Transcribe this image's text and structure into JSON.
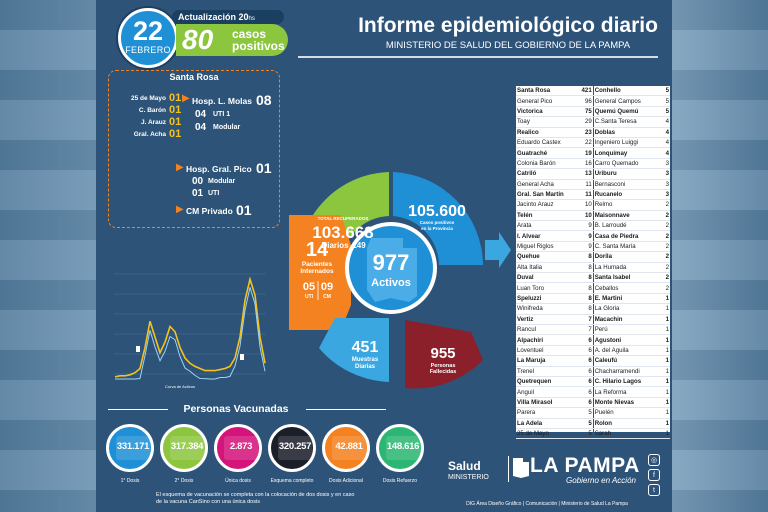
{
  "header": {
    "day": "22",
    "month": "FEBRERO",
    "update_label": "Actualización 20",
    "update_suffix": "hs",
    "new_cases": "80",
    "new_cases_label_line1": "casos",
    "new_cases_label_line2": "positivos",
    "title": "Informe epidemiológico diario",
    "subtitle": "MINISTERIO DE SALUD DEL GOBIERNO DE LA PAMPA"
  },
  "santa_rosa": {
    "title": "Santa Rosa",
    "municipalities": [
      {
        "name": "25 de Mayo",
        "value": "01"
      },
      {
        "name": "C. Barón",
        "value": "01"
      },
      {
        "name": "J. Arauz",
        "value": "01"
      },
      {
        "name": "Gral. Acha",
        "value": "01"
      }
    ],
    "molas": {
      "label": "Hosp. L. Molas",
      "value": "08",
      "uti_value": "04",
      "uti_label": "UTI 1",
      "modular_value": "04",
      "modular_label": "Modular"
    },
    "pico": {
      "label": "Hosp. Gral. Pico",
      "value": "01",
      "modular_value": "00",
      "modular_label": "Modular",
      "uti_value": "01",
      "uti_label": "UTI"
    },
    "cm_privado": {
      "label": "CM Privado",
      "value": "01"
    }
  },
  "wheel": {
    "center_value": "977",
    "center_label": "Activos",
    "recovered_label": "TOTAL RECUPERADOS",
    "recovered_value": "103.668",
    "recovered_daily_label": "Diarios",
    "recovered_daily_value": "149",
    "positives_value": "105.600",
    "positives_label_line1": "Casos positivos",
    "positives_label_line2": "en la Provincia",
    "interned_value": "14",
    "interned_label_line1": "Pacientes",
    "interned_label_line2": "Internados",
    "uti_value": "05",
    "uti_label": "UTI",
    "cm_value": "09",
    "cm_label": "CM",
    "samples_value": "451",
    "samples_label_line1": "Muestras",
    "samples_label_line2": "Diarias",
    "deaths_value": "955",
    "deaths_label_line1": "Personas",
    "deaths_label_line2": "Fallecidas",
    "colors": {
      "recovered": "#8cc63f",
      "positives": "#1f90d6",
      "interned": "#f58220",
      "samples": "#3aa7e0",
      "deaths": "#8b1f2a",
      "center": "#1f90d6"
    }
  },
  "chart_data": {
    "type": "line",
    "xlabel": "Curva de Activos",
    "series": [
      {
        "values": [
          2,
          3,
          3,
          4,
          6,
          10,
          30,
          55,
          40,
          25,
          35,
          50,
          45,
          30,
          20,
          15,
          12,
          10,
          8,
          8,
          8,
          9,
          10,
          12,
          20,
          40,
          75,
          95,
          80,
          40,
          15
        ]
      }
    ],
    "markers": [
      {
        "label": "1"
      },
      {
        "label": "2"
      }
    ],
    "colors": {
      "line": "#f7c21b",
      "line2": "#9ad4f5"
    }
  },
  "vaccines": {
    "title": "Personas Vacunadas",
    "items": [
      {
        "value": "331.171",
        "label": "1° Dosis",
        "color": "#1f90d6"
      },
      {
        "value": "317.384",
        "label": "2° Dosis",
        "color": "#8cc63f"
      },
      {
        "value": "2.873",
        "label": "Única dosis",
        "color": "#d4147b"
      },
      {
        "value": "320.257",
        "label": "Esquema completo",
        "color": "#1b1f2a"
      },
      {
        "value": "42.881",
        "label": "Dosis Adicional",
        "color": "#f58220"
      },
      {
        "value": "148.616",
        "label": "Dosis Refuerzo",
        "color": "#2bb673"
      }
    ],
    "note": "El esquema de vacunación se completa con la colocación de dos dosis y en caso de la vacuna CanSino con una única dosis"
  },
  "localities": {
    "left": [
      {
        "name": "Santa Rosa",
        "value": "421",
        "bold": true
      },
      {
        "name": "General Pico",
        "value": "96",
        "bold": false
      },
      {
        "name": "Victorica",
        "value": "75",
        "bold": true
      },
      {
        "name": "Toay",
        "value": "29",
        "bold": false
      },
      {
        "name": "Realico",
        "value": "23",
        "bold": true
      },
      {
        "name": "Eduardo Castex",
        "value": "22",
        "bold": false
      },
      {
        "name": "Guatraché",
        "value": "19",
        "bold": true
      },
      {
        "name": "Colonia Barón",
        "value": "16",
        "bold": false
      },
      {
        "name": "Catriló",
        "value": "13",
        "bold": true
      },
      {
        "name": "General Acha",
        "value": "11",
        "bold": false
      },
      {
        "name": "Gral. San Martín",
        "value": "11",
        "bold": true
      },
      {
        "name": "Jacinto Arauz",
        "value": "10",
        "bold": false
      },
      {
        "name": "Telén",
        "value": "10",
        "bold": true
      },
      {
        "name": "Arata",
        "value": "9",
        "bold": false
      },
      {
        "name": "I. Alvear",
        "value": "9",
        "bold": true
      },
      {
        "name": "Miguel Riglos",
        "value": "9",
        "bold": false
      },
      {
        "name": "Quehue",
        "value": "8",
        "bold": true
      },
      {
        "name": "Alta Italia",
        "value": "8",
        "bold": false
      },
      {
        "name": "Duval",
        "value": "8",
        "bold": true
      },
      {
        "name": "Luan Toro",
        "value": "8",
        "bold": false
      },
      {
        "name": "Speluzzi",
        "value": "8",
        "bold": true
      },
      {
        "name": "Winifreda",
        "value": "8",
        "bold": false
      },
      {
        "name": "Vertiz",
        "value": "7",
        "bold": true
      },
      {
        "name": "Rancul",
        "value": "7",
        "bold": false
      },
      {
        "name": "Alpachiri",
        "value": "6",
        "bold": true
      },
      {
        "name": "Loventuel",
        "value": "6",
        "bold": false
      },
      {
        "name": "La Maruja",
        "value": "6",
        "bold": true
      },
      {
        "name": "Trenel",
        "value": "6",
        "bold": false
      },
      {
        "name": "Quetrequen",
        "value": "6",
        "bold": true
      },
      {
        "name": "Anguil",
        "value": "6",
        "bold": false
      },
      {
        "name": "Villa Mirasol",
        "value": "6",
        "bold": true
      },
      {
        "name": "Parera",
        "value": "5",
        "bold": false
      },
      {
        "name": "La Adela",
        "value": "5",
        "bold": true
      },
      {
        "name": "25 de Mayo",
        "value": "5",
        "bold": false
      }
    ],
    "right": [
      {
        "name": "Conhello",
        "value": "5",
        "bold": true
      },
      {
        "name": "General Campos",
        "value": "5",
        "bold": false
      },
      {
        "name": "Quemú Quemú",
        "value": "5",
        "bold": true
      },
      {
        "name": "C.Santa Teresa",
        "value": "4",
        "bold": false
      },
      {
        "name": "Doblas",
        "value": "4",
        "bold": true
      },
      {
        "name": "Ingeniero Luiggi",
        "value": "4",
        "bold": false
      },
      {
        "name": "Lonquimay",
        "value": "4",
        "bold": true
      },
      {
        "name": "Carro Quemado",
        "value": "3",
        "bold": false
      },
      {
        "name": "Uriburu",
        "value": "3",
        "bold": true
      },
      {
        "name": "Bernasconi",
        "value": "3",
        "bold": false
      },
      {
        "name": "Rucanelo",
        "value": "3",
        "bold": true
      },
      {
        "name": "Relmo",
        "value": "2",
        "bold": false
      },
      {
        "name": "Maisonnave",
        "value": "2",
        "bold": true
      },
      {
        "name": "B. Larroudé",
        "value": "2",
        "bold": false
      },
      {
        "name": "Casa de Piedra",
        "value": "2",
        "bold": true
      },
      {
        "name": "C. Santa María",
        "value": "2",
        "bold": false
      },
      {
        "name": "Dorila",
        "value": "2",
        "bold": true
      },
      {
        "name": "La Humada",
        "value": "2",
        "bold": false
      },
      {
        "name": "Santa Isabel",
        "value": "2",
        "bold": true
      },
      {
        "name": "Ceballos",
        "value": "2",
        "bold": false
      },
      {
        "name": "E. Martini",
        "value": "1",
        "bold": true
      },
      {
        "name": "La Gloria",
        "value": "1",
        "bold": false
      },
      {
        "name": "Macachin",
        "value": "1",
        "bold": true
      },
      {
        "name": "Perú",
        "value": "1",
        "bold": false
      },
      {
        "name": "Agustoni",
        "value": "1",
        "bold": true
      },
      {
        "name": "A. del Aguila",
        "value": "1",
        "bold": false
      },
      {
        "name": "Caleufú",
        "value": "1",
        "bold": true
      },
      {
        "name": "Chacharramendi",
        "value": "1",
        "bold": false
      },
      {
        "name": "C. Hilario Lagos",
        "value": "1",
        "bold": true
      },
      {
        "name": "La Reforma",
        "value": "1",
        "bold": false
      },
      {
        "name": "Monte Nievas",
        "value": "1",
        "bold": true
      },
      {
        "name": "Puelén",
        "value": "1",
        "bold": false
      },
      {
        "name": "Rolon",
        "value": "1",
        "bold": true
      },
      {
        "name": "Sarah",
        "value": "1",
        "bold": false
      }
    ]
  },
  "footer": {
    "salud": "Salud",
    "ministerio": "MINISTERIO",
    "la_pampa": "LA PAMPA",
    "gobierno": "Gobierno en Acción",
    "credits": "DIG Área Diseño Gráfico | Comunicación | Ministerio de Salud La Pampa",
    "social_icons": [
      "instagram-icon",
      "facebook-icon",
      "twitter-icon"
    ]
  }
}
